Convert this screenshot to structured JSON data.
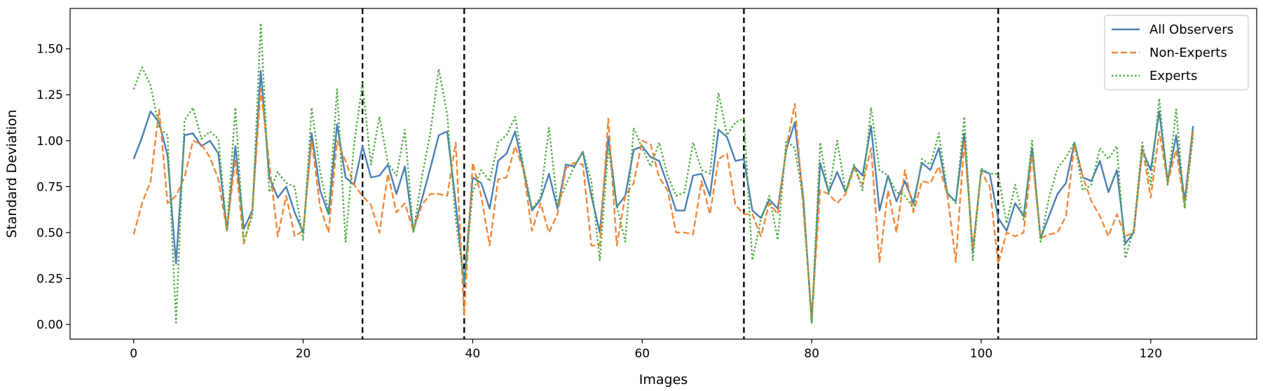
{
  "chart_data": {
    "type": "line",
    "xlabel": "Images",
    "ylabel": "Standard Deviation",
    "xlim": [
      -7.5,
      132.5
    ],
    "ylim": [
      -0.08,
      1.72
    ],
    "xticks": [
      0,
      20,
      40,
      60,
      80,
      100,
      120
    ],
    "yticks": [
      "0.00",
      "0.25",
      "0.50",
      "0.75",
      "1.00",
      "1.25",
      "1.50"
    ],
    "grid": false,
    "legend_position": "top-right",
    "vlines": [
      27,
      39,
      72,
      102
    ],
    "series": [
      {
        "name": "All Observers",
        "color": "#4a7fb5",
        "dash": "solid",
        "values": [
          0.9,
          1.02,
          1.16,
          1.1,
          0.92,
          0.33,
          1.03,
          1.04,
          0.97,
          1.0,
          0.93,
          0.51,
          0.97,
          0.52,
          0.62,
          1.38,
          0.8,
          0.69,
          0.75,
          0.61,
          0.5,
          1.04,
          0.73,
          0.6,
          1.09,
          0.8,
          0.76,
          0.97,
          0.8,
          0.81,
          0.87,
          0.71,
          0.86,
          0.51,
          0.68,
          0.85,
          1.03,
          1.05,
          0.66,
          0.22,
          0.8,
          0.77,
          0.63,
          0.89,
          0.93,
          1.05,
          0.84,
          0.62,
          0.68,
          0.82,
          0.63,
          0.87,
          0.86,
          0.94,
          0.7,
          0.5,
          1.02,
          0.64,
          0.7,
          0.95,
          0.97,
          0.91,
          0.89,
          0.76,
          0.62,
          0.62,
          0.81,
          0.82,
          0.7,
          1.06,
          1.02,
          0.89,
          0.9,
          0.62,
          0.58,
          0.68,
          0.63,
          0.95,
          1.1,
          0.69,
          0.01,
          0.88,
          0.72,
          0.83,
          0.72,
          0.86,
          0.81,
          1.08,
          0.62,
          0.81,
          0.67,
          0.78,
          0.66,
          0.88,
          0.84,
          0.96,
          0.71,
          0.67,
          1.04,
          0.4,
          0.84,
          0.82,
          0.58,
          0.51,
          0.66,
          0.59,
          0.96,
          0.47,
          0.59,
          0.71,
          0.77,
          0.99,
          0.8,
          0.78,
          0.89,
          0.72,
          0.84,
          0.44,
          0.5,
          0.95,
          0.84,
          1.16,
          0.78,
          1.03,
          0.67,
          1.08
        ]
      },
      {
        "name": "Non-Experts",
        "color": "#f0883a",
        "dash": "dashed",
        "values": [
          0.49,
          0.66,
          0.78,
          1.17,
          0.66,
          0.7,
          0.8,
          1.0,
          0.98,
          0.91,
          0.79,
          0.51,
          0.9,
          0.44,
          0.62,
          1.28,
          0.88,
          0.48,
          0.7,
          0.48,
          0.51,
          1.0,
          0.64,
          0.5,
          1.0,
          0.89,
          0.76,
          0.7,
          0.65,
          0.5,
          0.82,
          0.61,
          0.66,
          0.51,
          0.65,
          0.71,
          0.71,
          0.7,
          0.99,
          0.05,
          0.88,
          0.7,
          0.43,
          0.79,
          0.8,
          0.97,
          0.84,
          0.51,
          0.66,
          0.5,
          0.6,
          0.85,
          0.88,
          0.87,
          0.43,
          0.43,
          1.12,
          0.43,
          0.7,
          0.77,
          1.0,
          0.98,
          0.8,
          0.73,
          0.5,
          0.5,
          0.49,
          0.78,
          0.6,
          0.9,
          0.93,
          0.65,
          0.6,
          0.6,
          0.48,
          0.66,
          0.6,
          0.96,
          1.2,
          0.64,
          0.04,
          0.73,
          0.71,
          0.66,
          0.71,
          0.85,
          0.76,
          0.96,
          0.34,
          0.73,
          0.5,
          0.84,
          0.61,
          0.78,
          0.77,
          0.86,
          0.71,
          0.34,
          1.0,
          0.41,
          0.83,
          0.75,
          0.33,
          0.5,
          0.48,
          0.5,
          0.92,
          0.47,
          0.49,
          0.5,
          0.59,
          0.98,
          0.8,
          0.67,
          0.59,
          0.48,
          0.6,
          0.48,
          0.5,
          0.97,
          0.69,
          1.05,
          0.77,
          0.95,
          0.64,
          1.05
        ]
      },
      {
        "name": "Experts",
        "color": "#4dab3f",
        "dash": "dotted",
        "values": [
          1.28,
          1.4,
          1.3,
          1.07,
          1.03,
          0.01,
          1.11,
          1.18,
          1.01,
          1.05,
          1.01,
          0.51,
          1.18,
          0.45,
          0.59,
          1.64,
          0.72,
          0.83,
          0.77,
          0.75,
          0.46,
          1.18,
          0.83,
          0.61,
          1.28,
          0.45,
          0.98,
          1.31,
          0.87,
          1.13,
          0.88,
          0.81,
          1.06,
          0.5,
          0.8,
          1.04,
          1.39,
          1.14,
          0.57,
          0.23,
          0.72,
          0.84,
          0.78,
          0.99,
          1.03,
          1.13,
          0.86,
          0.63,
          0.69,
          1.07,
          0.65,
          0.76,
          0.86,
          0.94,
          0.78,
          0.35,
          0.96,
          0.65,
          0.45,
          1.07,
          0.96,
          0.86,
          0.99,
          0.81,
          0.7,
          0.72,
          0.99,
          0.84,
          0.82,
          1.26,
          1.03,
          1.1,
          1.12,
          0.35,
          0.57,
          0.7,
          0.46,
          1.0,
          0.96,
          0.68,
          0.01,
          0.99,
          0.71,
          1.0,
          0.72,
          0.87,
          0.73,
          1.18,
          0.84,
          0.81,
          0.72,
          0.7,
          0.63,
          0.9,
          0.87,
          1.04,
          0.72,
          0.66,
          1.13,
          0.35,
          0.85,
          0.82,
          0.82,
          0.55,
          0.76,
          0.57,
          1.0,
          0.45,
          0.69,
          0.85,
          0.91,
          0.99,
          0.73,
          0.76,
          0.96,
          0.9,
          0.97,
          0.36,
          0.52,
          0.99,
          0.76,
          1.23,
          0.76,
          1.17,
          0.63,
          1.03
        ]
      }
    ]
  }
}
